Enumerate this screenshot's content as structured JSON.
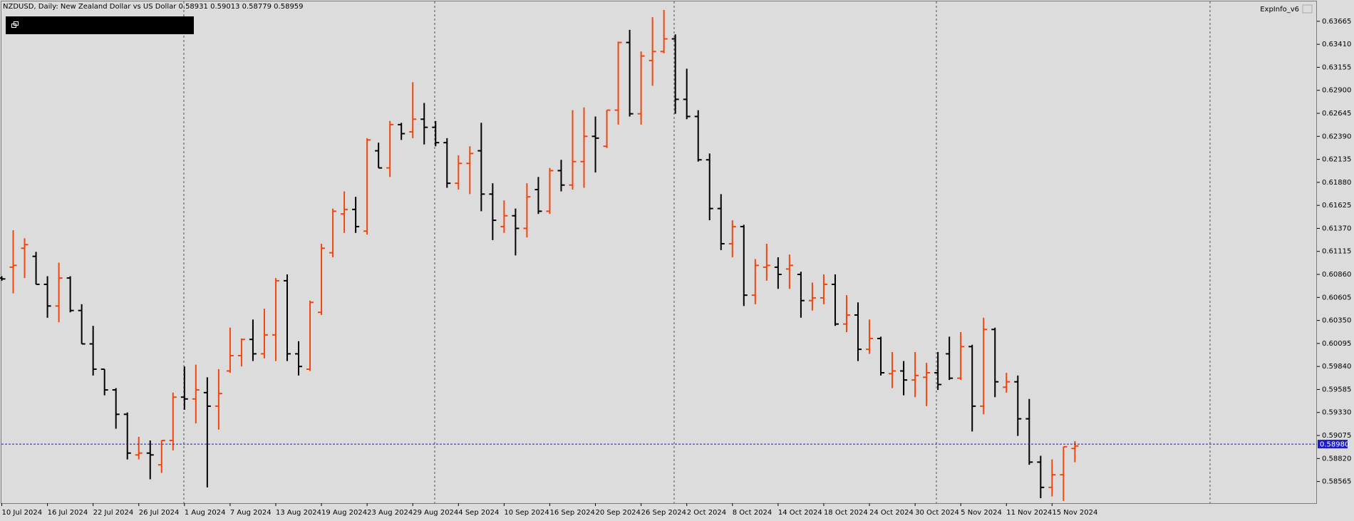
{
  "chart_data": {
    "type": "ohlc",
    "title": "NZDUSD, Daily:  New Zealand Dollar vs US Dollar",
    "indicator_label": "ExpInfo_v6",
    "up_color": "#f0460f",
    "down_color": "#000000",
    "categories": [
      "10 Jul 2024",
      null,
      null,
      null,
      "16 Jul 2024",
      null,
      null,
      null,
      "22 Jul 2024",
      null,
      null,
      null,
      "26 Jul 2024",
      null,
      null,
      null,
      "1 Aug 2024",
      null,
      null,
      null,
      "7 Aug 2024",
      null,
      null,
      null,
      "13 Aug 2024",
      null,
      null,
      null,
      "19 Aug 2024",
      null,
      null,
      null,
      "23 Aug 2024",
      null,
      null,
      null,
      "29 Aug 2024",
      null,
      null,
      null,
      "4 Sep 2024",
      null,
      null,
      null,
      "10 Sep 2024",
      null,
      null,
      null,
      "16 Sep 2024",
      null,
      null,
      null,
      "20 Sep 2024",
      null,
      null,
      null,
      "26 Sep 2024",
      null,
      null,
      null,
      "2 Oct 2024",
      null,
      null,
      null,
      "8 Oct 2024",
      null,
      null,
      null,
      "14 Oct 2024",
      null,
      null,
      null,
      "18 Oct 2024",
      null,
      null,
      null,
      "24 Oct 2024",
      null,
      null,
      null,
      "30 Oct 2024",
      null,
      null,
      null,
      "5 Nov 2024",
      null,
      null,
      null,
      "11 Nov 2024",
      null,
      null,
      null,
      "15 Nov 2024",
      null,
      null
    ],
    "open": [
      0.6082,
      0.6094,
      0.6115,
      0.6106,
      0.6075,
      0.6051,
      0.6082,
      0.6046,
      0.6009,
      0.5981,
      0.5958,
      0.5931,
      0.5886,
      0.5888,
      0.5875,
      0.5902,
      0.595,
      0.5948,
      0.5955,
      0.594,
      0.5979,
      0.5996,
      0.6014,
      0.5998,
      0.6019,
      0.6079,
      0.5998,
      0.5981,
      0.6044,
      0.611,
      0.6153,
      0.6158,
      0.6134,
      0.6223,
      0.6204,
      0.6252,
      0.6244,
      0.6258,
      0.6249,
      0.6232,
      0.6187,
      0.6209,
      0.6223,
      0.6175,
      0.6139,
      0.6151,
      0.6137,
      0.618,
      0.6156,
      0.6201,
      0.6185,
      0.6211,
      0.6239,
      0.6228,
      0.6268,
      0.6343,
      0.6264,
      0.6323,
      0.6333,
      0.6347,
      0.628,
      0.6261,
      0.6213,
      0.6159,
      0.612,
      0.6139,
      0.6063,
      0.6094,
      0.6094,
      0.6092,
      0.6086,
      0.6057,
      0.606,
      0.6075,
      0.6031,
      0.6041,
      0.6003,
      0.6015,
      0.5976,
      0.5979,
      0.5969,
      0.5972,
      0.5977,
      0.5998,
      0.5971,
      0.6006,
      0.594,
      0.6025,
      0.5961,
      0.5967,
      0.5926,
      0.5878,
      0.585,
      0.5864,
      0.58931
    ],
    "high": [
      0.6084,
      0.6135,
      0.6126,
      0.6111,
      0.6084,
      0.6099,
      0.6084,
      0.6053,
      0.6029,
      0.5981,
      0.596,
      0.5933,
      0.5906,
      0.5902,
      0.5902,
      0.5955,
      0.5984,
      0.5986,
      0.5972,
      0.5981,
      0.6027,
      0.6015,
      0.6036,
      0.6048,
      0.6082,
      0.6086,
      0.6012,
      0.6057,
      0.612,
      0.6159,
      0.6178,
      0.6172,
      0.6237,
      0.6232,
      0.6256,
      0.6254,
      0.6299,
      0.6276,
      0.6256,
      0.6237,
      0.6218,
      0.6228,
      0.6254,
      0.6187,
      0.6168,
      0.6159,
      0.6187,
      0.6194,
      0.6204,
      0.6213,
      0.6268,
      0.6271,
      0.6261,
      0.6268,
      0.6344,
      0.6357,
      0.6333,
      0.6371,
      0.6379,
      0.6352,
      0.6314,
      0.6268,
      0.622,
      0.6175,
      0.6146,
      0.6141,
      0.6103,
      0.612,
      0.6105,
      0.6108,
      0.6089,
      0.6077,
      0.6086,
      0.6086,
      0.6063,
      0.6055,
      0.6036,
      0.6017,
      0.6,
      0.599,
      0.6,
      0.5988,
      0.6,
      0.6017,
      0.6022,
      0.6008,
      0.6038,
      0.6027,
      0.5977,
      0.5974,
      0.5948,
      0.5885,
      0.5881,
      0.5895,
      0.59013
    ],
    "low": [
      0.6079,
      0.6065,
      0.6082,
      0.6075,
      0.6038,
      0.6033,
      0.6044,
      0.6009,
      0.5974,
      0.5952,
      0.5915,
      0.5881,
      0.5881,
      0.5859,
      0.5866,
      0.5891,
      0.5936,
      0.5921,
      0.585,
      0.5914,
      0.5977,
      0.5984,
      0.599,
      0.5993,
      0.599,
      0.599,
      0.5974,
      0.5979,
      0.6041,
      0.6105,
      0.6132,
      0.6132,
      0.613,
      0.6204,
      0.6194,
      0.6235,
      0.6237,
      0.623,
      0.6228,
      0.6182,
      0.618,
      0.6175,
      0.6156,
      0.6124,
      0.6132,
      0.6107,
      0.6127,
      0.6153,
      0.6153,
      0.6178,
      0.618,
      0.6182,
      0.6199,
      0.6226,
      0.6252,
      0.6261,
      0.6252,
      0.6295,
      0.6331,
      0.6264,
      0.6258,
      0.6211,
      0.6146,
      0.6113,
      0.6105,
      0.6051,
      0.6053,
      0.6079,
      0.607,
      0.607,
      0.6038,
      0.6046,
      0.6053,
      0.6029,
      0.6022,
      0.599,
      0.5998,
      0.5974,
      0.596,
      0.5952,
      0.595,
      0.594,
      0.5958,
      0.5969,
      0.5969,
      0.5912,
      0.5931,
      0.595,
      0.5955,
      0.5907,
      0.5875,
      0.5838,
      0.584,
      0.5835,
      0.58779
    ],
    "close": [
      0.6081,
      0.6096,
      0.6119,
      0.6075,
      0.6051,
      0.6082,
      0.6046,
      0.6009,
      0.5981,
      0.5958,
      0.5931,
      0.5888,
      0.5888,
      0.5886,
      0.5902,
      0.595,
      0.5948,
      0.5958,
      0.594,
      0.5954,
      0.5996,
      0.6014,
      0.5998,
      0.6019,
      0.6079,
      0.5998,
      0.5984,
      0.6055,
      0.6115,
      0.6156,
      0.6158,
      0.6139,
      0.6235,
      0.6204,
      0.6252,
      0.6242,
      0.6258,
      0.6249,
      0.6232,
      0.6187,
      0.6209,
      0.622,
      0.6175,
      0.6146,
      0.6151,
      0.6137,
      0.6172,
      0.6156,
      0.6201,
      0.6185,
      0.6211,
      0.6239,
      0.6237,
      0.6268,
      0.6343,
      0.6264,
      0.6328,
      0.6333,
      0.6347,
      0.628,
      0.6261,
      0.6213,
      0.6159,
      0.612,
      0.6139,
      0.6063,
      0.6096,
      0.6096,
      0.6086,
      0.6096,
      0.6057,
      0.606,
      0.6075,
      0.6031,
      0.6041,
      0.6003,
      0.6015,
      0.5977,
      0.5979,
      0.5969,
      0.5974,
      0.5977,
      0.5964,
      0.5971,
      0.6006,
      0.594,
      0.6025,
      0.5967,
      0.5967,
      0.5926,
      0.5878,
      0.585,
      0.5864,
      0.5895,
      0.58959
    ],
    "current_price": {
      "value": 0.5898,
      "label": "0.58980"
    },
    "current_price_color": "#1c1cc8",
    "ylim": [
      0.58325,
      0.63885
    ],
    "yticks": [
      {
        "value": 0.63665,
        "label": "0.63665"
      },
      {
        "value": 0.6341,
        "label": "0.63410"
      },
      {
        "value": 0.63155,
        "label": "0.63155"
      },
      {
        "value": 0.629,
        "label": "0.62900"
      },
      {
        "value": 0.62645,
        "label": "0.62645"
      },
      {
        "value": 0.6239,
        "label": "0.62390"
      },
      {
        "value": 0.62135,
        "label": "0.62135"
      },
      {
        "value": 0.6188,
        "label": "0.61880"
      },
      {
        "value": 0.61625,
        "label": "0.61625"
      },
      {
        "value": 0.6137,
        "label": "0.61370"
      },
      {
        "value": 0.61115,
        "label": "0.61115"
      },
      {
        "value": 0.6086,
        "label": "0.60860"
      },
      {
        "value": 0.60605,
        "label": "0.60605"
      },
      {
        "value": 0.6035,
        "label": "0.60350"
      },
      {
        "value": 0.60095,
        "label": "0.60095"
      },
      {
        "value": 0.5984,
        "label": "0.59840"
      },
      {
        "value": 0.59585,
        "label": "0.59585"
      },
      {
        "value": 0.5933,
        "label": "0.59330"
      },
      {
        "value": 0.59075,
        "label": "0.59075"
      },
      {
        "value": 0.5882,
        "label": "0.58820"
      },
      {
        "value": 0.58565,
        "label": "0.58565"
      }
    ]
  }
}
